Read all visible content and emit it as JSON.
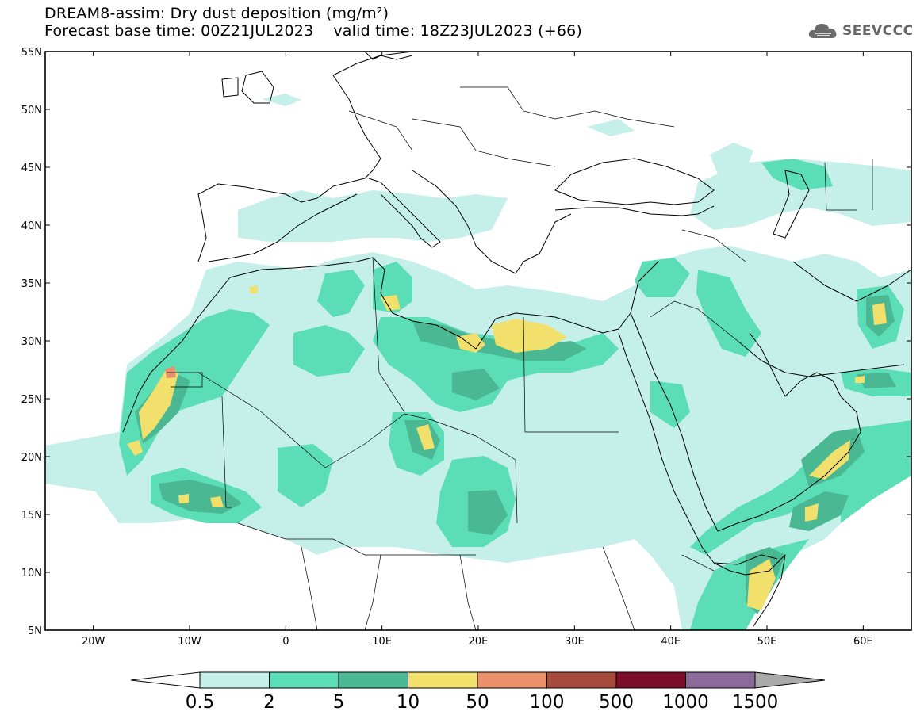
{
  "header": {
    "title": "DREAM8-assim: Dry dust deposition (mg/m²)",
    "base_time": "Forecast base time: 00Z21JUL2023",
    "valid_time": "valid time: 18Z23JUL2023 (+66)"
  },
  "logo": {
    "text": "SEEVCCC",
    "icon": "cloud-icon"
  },
  "map": {
    "lon_range": [
      -25,
      65
    ],
    "lat_range": [
      5,
      55
    ],
    "lon_ticks": [
      {
        "value": -20,
        "label": "20W"
      },
      {
        "value": -10,
        "label": "10W"
      },
      {
        "value": 0,
        "label": "0"
      },
      {
        "value": 10,
        "label": "10E"
      },
      {
        "value": 20,
        "label": "20E"
      },
      {
        "value": 30,
        "label": "30E"
      },
      {
        "value": 40,
        "label": "40E"
      },
      {
        "value": 50,
        "label": "50E"
      },
      {
        "value": 60,
        "label": "60E"
      }
    ],
    "lat_ticks": [
      {
        "value": 55,
        "label": "55N"
      },
      {
        "value": 50,
        "label": "50N"
      },
      {
        "value": 45,
        "label": "45N"
      },
      {
        "value": 40,
        "label": "40N"
      },
      {
        "value": 35,
        "label": "35N"
      },
      {
        "value": 30,
        "label": "30N"
      },
      {
        "value": 25,
        "label": "25N"
      },
      {
        "value": 20,
        "label": "20N"
      },
      {
        "value": 15,
        "label": "15N"
      },
      {
        "value": 10,
        "label": "10N"
      },
      {
        "value": 5,
        "label": "5N"
      }
    ]
  },
  "colorbar": {
    "levels": [
      "0.5",
      "2",
      "5",
      "10",
      "50",
      "100",
      "500",
      "1000",
      "1500"
    ],
    "colors": [
      "#c4f0e9",
      "#5bddb6",
      "#4ab893",
      "#f1e06c",
      "#ea906a",
      "#a64a3d",
      "#7a0d2a",
      "#8c6b9b"
    ],
    "under_color": "#ffffff",
    "over_color": "#aaaaaa"
  }
}
